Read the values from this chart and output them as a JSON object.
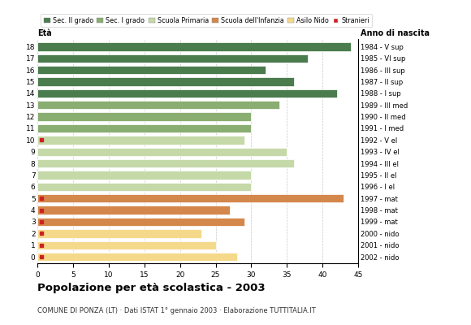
{
  "ages": [
    18,
    17,
    16,
    15,
    14,
    13,
    12,
    11,
    10,
    9,
    8,
    7,
    6,
    5,
    4,
    3,
    2,
    1,
    0
  ],
  "anno_nascita": [
    "1984 - V sup",
    "1985 - VI sup",
    "1986 - III sup",
    "1987 - II sup",
    "1988 - I sup",
    "1989 - III med",
    "1990 - II med",
    "1991 - I med",
    "1992 - V el",
    "1993 - IV el",
    "1994 - III el",
    "1995 - II el",
    "1996 - I el",
    "1997 - mat",
    "1998 - mat",
    "1999 - mat",
    "2000 - nido",
    "2001 - nido",
    "2002 - nido"
  ],
  "values": [
    44,
    38,
    32,
    36,
    42,
    34,
    30,
    30,
    29,
    35,
    36,
    30,
    30,
    43,
    27,
    29,
    23,
    25,
    28
  ],
  "stranieri": [
    0,
    0,
    0,
    0,
    0,
    0,
    0,
    0,
    1,
    0,
    0,
    0,
    0,
    1,
    1,
    1,
    1,
    1,
    1
  ],
  "categories": {
    "sec2": [
      18,
      17,
      16,
      15,
      14
    ],
    "sec1": [
      13,
      12,
      11
    ],
    "primaria": [
      10,
      9,
      8,
      7,
      6
    ],
    "infanzia": [
      5,
      4,
      3
    ],
    "nido": [
      2,
      1,
      0
    ]
  },
  "colors": {
    "sec2": "#4a7c4e",
    "sec1": "#8aad72",
    "primaria": "#c5d9a8",
    "infanzia": "#d4874b",
    "nido": "#f5d98b",
    "stranieri": "#cc2222"
  },
  "legend_labels": [
    "Sec. II grado",
    "Sec. I grado",
    "Scuola Primaria",
    "Scuola dell'Infanzia",
    "Asilo Nido",
    "Stranieri"
  ],
  "title": "Popolazione per età scolastica - 2003",
  "subtitle": "COMUNE DI PONZA (LT) · Dati ISTAT 1° gennaio 2003 · Elaborazione TUTTITALIA.IT",
  "xlabel_eta": "Età",
  "xlabel_anno": "Anno di nascita",
  "xlim": [
    0,
    45
  ],
  "xticks": [
    0,
    5,
    10,
    15,
    20,
    25,
    30,
    35,
    40,
    45
  ],
  "bar_height": 0.72,
  "background_color": "#ffffff",
  "grid_color": "#bbbbbb"
}
